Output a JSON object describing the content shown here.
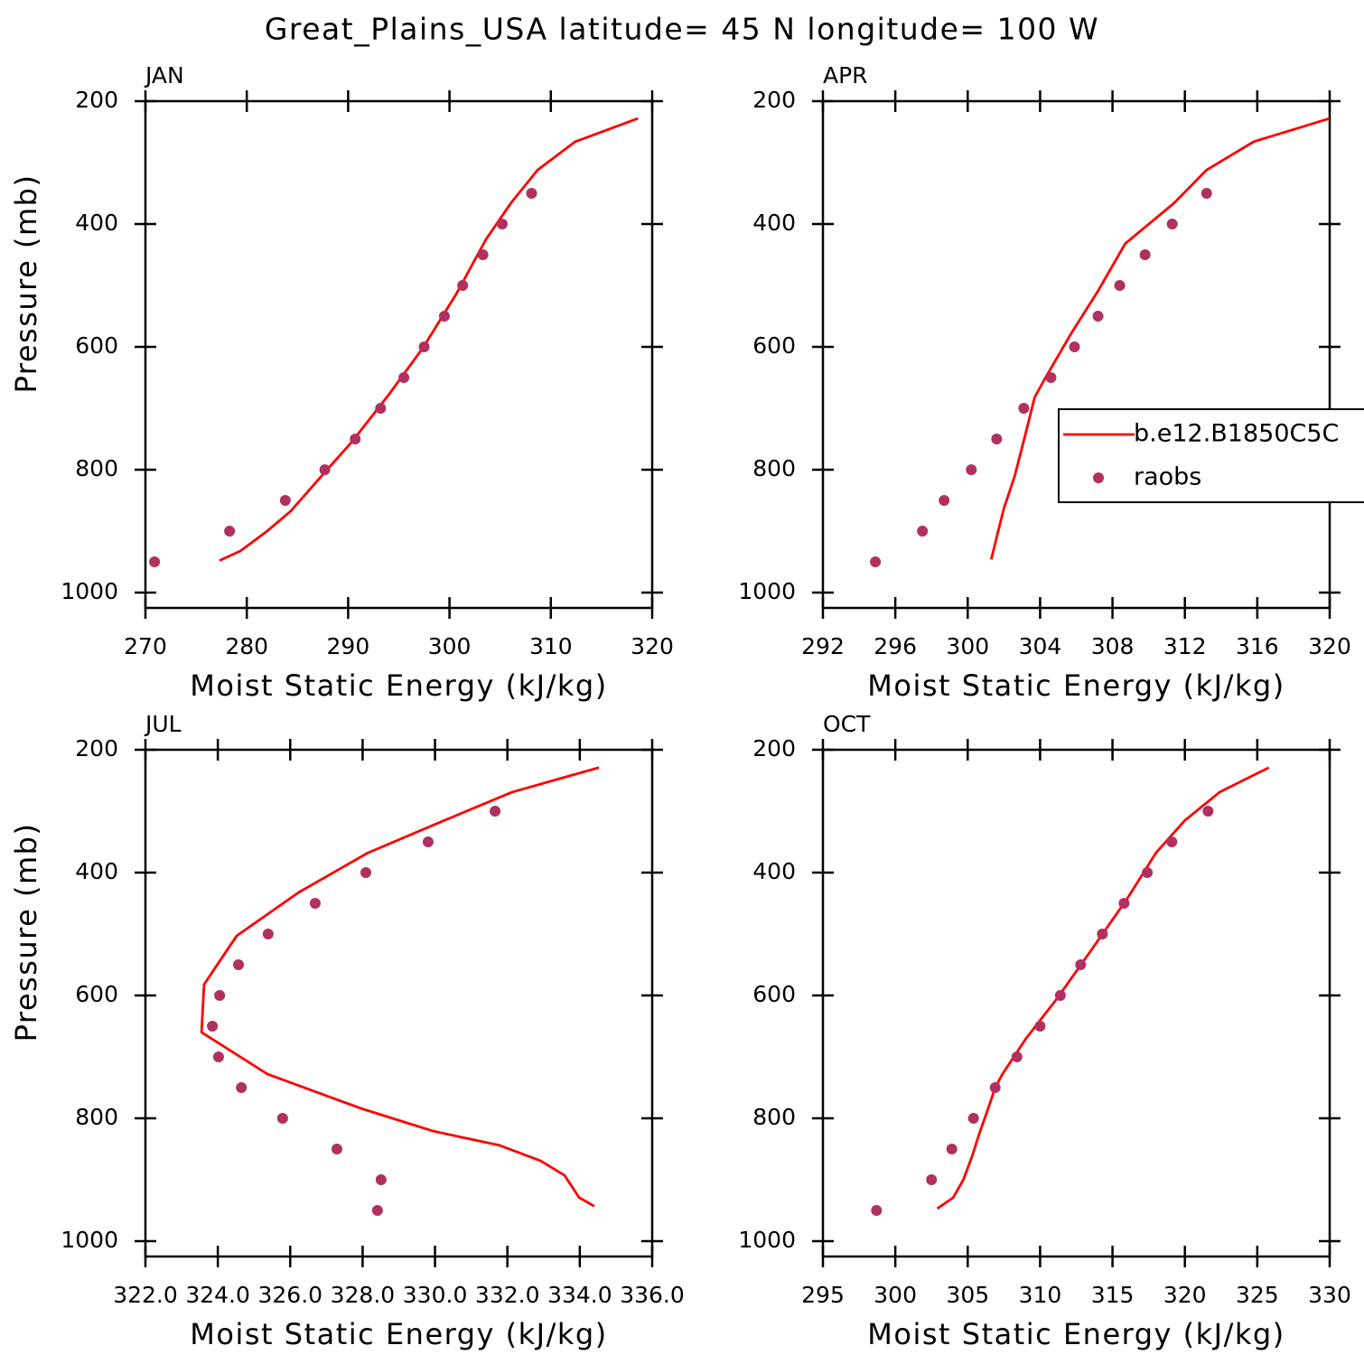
{
  "title": "Great_Plains_USA  latitude= 45 N longitude= 100 W",
  "chart_data": [
    {
      "type": "line",
      "label": "JAN",
      "xlabel": "Moist Static Energy (kJ/kg)",
      "ylabel": "Pressure (mb)",
      "xlim": [
        270,
        320
      ],
      "xticks": [
        270,
        280,
        290,
        300,
        310,
        320
      ],
      "ylim": [
        1025,
        200
      ],
      "yticks": [
        200,
        400,
        600,
        800,
        1000
      ],
      "series": [
        {
          "color": "#ff0000",
          "style": "line",
          "x": [
            277.3,
            279.4,
            282.0,
            284.3,
            286.8,
            290.4,
            294.0,
            297.4,
            300.7,
            303.6,
            306.1,
            308.7,
            312.4,
            318.6
          ],
          "y": [
            948,
            932,
            900,
            868,
            821,
            754,
            678,
            601,
            513,
            425,
            365,
            312,
            266,
            228
          ]
        },
        {
          "color": "#b03060",
          "style": "marker",
          "x": [
            270.9,
            278.3,
            283.8,
            287.7,
            290.7,
            293.2,
            295.5,
            297.5,
            299.5,
            301.3,
            303.3,
            305.2,
            308.1
          ],
          "y": [
            950,
            900,
            850,
            800,
            750,
            700,
            650,
            600,
            550,
            500,
            450,
            400,
            350
          ]
        }
      ]
    },
    {
      "type": "line",
      "label": "APR",
      "xlabel": "Moist Static Energy (kJ/kg)",
      "legend": "right",
      "xlim": [
        292,
        320
      ],
      "xticks": [
        292,
        296,
        300,
        304,
        308,
        312,
        316,
        320
      ],
      "ylim": [
        1025,
        200
      ],
      "yticks": [
        200,
        400,
        600,
        800,
        1000
      ],
      "series": [
        {
          "name": "b.e12.B1850C5C",
          "color": "#ff0000",
          "style": "line",
          "x": [
            301.3,
            301.6,
            302.0,
            302.6,
            303.2,
            303.7,
            304.3,
            305.7,
            307.2,
            308.7,
            311.4,
            313.2,
            315.8,
            320.0
          ],
          "y": [
            946,
            910,
            863,
            810,
            741,
            682,
            650,
            579,
            509,
            432,
            366,
            312,
            266,
            228
          ]
        },
        {
          "name": "raobs",
          "color": "#b03060",
          "style": "marker",
          "x": [
            294.9,
            297.5,
            298.7,
            300.2,
            301.6,
            303.1,
            304.6,
            305.9,
            307.2,
            308.4,
            309.8,
            311.3,
            313.2
          ],
          "y": [
            950,
            900,
            850,
            800,
            750,
            700,
            650,
            600,
            550,
            500,
            450,
            400,
            350
          ]
        }
      ]
    },
    {
      "type": "line",
      "label": "JUL",
      "xlabel": "Moist Static Energy (kJ/kg)",
      "ylabel": "Pressure (mb)",
      "xlim": [
        322,
        336
      ],
      "xticks": [
        {
          "value": 322,
          "label": "322.0"
        },
        {
          "value": 324,
          "label": "324.0"
        },
        {
          "value": 326,
          "label": "326.0"
        },
        {
          "value": 328,
          "label": "328.0"
        },
        {
          "value": 330,
          "label": "330.0"
        },
        {
          "value": 332,
          "label": "332.0"
        },
        {
          "value": 334,
          "label": "334.0"
        },
        {
          "value": 336,
          "label": "336.0"
        }
      ],
      "ylim": [
        1025,
        200
      ],
      "yticks": [
        200,
        400,
        600,
        800,
        1000
      ],
      "series": [
        {
          "color": "#ff0000",
          "style": "line",
          "x": [
            334.53,
            332.13,
            330.26,
            328.14,
            326.24,
            324.52,
            323.62,
            323.55,
            325.37,
            327.96,
            329.96,
            331.78,
            332.91,
            333.58,
            333.98,
            334.4
          ],
          "y": [
            229,
            269,
            315,
            368,
            432,
            503,
            582,
            660,
            728,
            784,
            821,
            844,
            869,
            893,
            929,
            943
          ]
        },
        {
          "color": "#b03060",
          "style": "marker",
          "x": [
            331.66,
            329.81,
            328.09,
            326.69,
            325.39,
            324.57,
            324.05,
            323.85,
            324.02,
            324.65,
            325.79,
            327.29,
            328.51,
            328.41
          ],
          "y": [
            300,
            350,
            400,
            450,
            500,
            550,
            600,
            650,
            700,
            750,
            800,
            850,
            900,
            950
          ]
        }
      ]
    },
    {
      "type": "line",
      "label": "OCT",
      "xlabel": "Moist Static Energy (kJ/kg)",
      "xlim": [
        295,
        330
      ],
      "xticks": [
        295,
        300,
        305,
        310,
        315,
        320,
        325,
        330
      ],
      "ylim": [
        1025,
        200
      ],
      "yticks": [
        200,
        400,
        600,
        800,
        1000
      ],
      "series": [
        {
          "color": "#ff0000",
          "style": "line",
          "x": [
            302.9,
            304.0,
            304.7,
            305.3,
            305.8,
            306.4,
            306.9,
            307.4,
            309.0,
            311.2,
            313.6,
            316.0,
            318.0,
            320.0,
            322.4,
            325.8
          ],
          "y": [
            947,
            929,
            900,
            862,
            825,
            785,
            750,
            728,
            671,
            604,
            524,
            443,
            368,
            315,
            269,
            229
          ]
        },
        {
          "color": "#b03060",
          "style": "marker",
          "x": [
            298.7,
            302.5,
            303.9,
            305.4,
            306.9,
            308.4,
            310.0,
            311.4,
            312.8,
            314.3,
            315.8,
            317.4,
            319.1,
            321.6
          ],
          "y": [
            950,
            900,
            850,
            800,
            750,
            700,
            650,
            600,
            550,
            500,
            450,
            400,
            350,
            300
          ]
        }
      ]
    }
  ]
}
